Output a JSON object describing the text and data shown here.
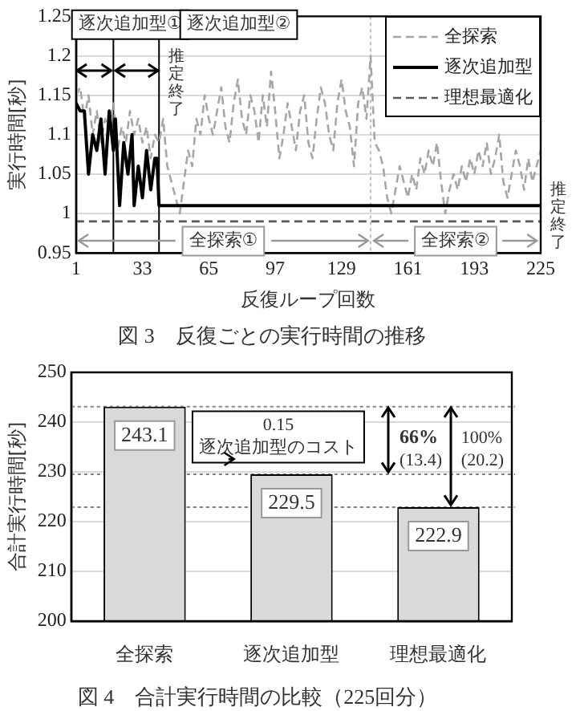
{
  "chart_data": [
    {
      "type": "line",
      "title": "図 3　反復ごとの実行時間の推移",
      "xlabel": "反復ループ回数",
      "ylabel": "実行時間[秒]",
      "xlim": [
        1,
        225
      ],
      "xticks": [
        1,
        33,
        65,
        97,
        129,
        161,
        193,
        225
      ],
      "ylim": [
        0.95,
        1.25
      ],
      "yticks": [
        0.95,
        1,
        1.05,
        1.1,
        1.15,
        1.2,
        1.25
      ],
      "grid": "y",
      "legend": "top right",
      "marker": "none",
      "series": [
        {
          "name": "全探索",
          "color": "#a6a6a6",
          "line_style": "dashed",
          "x": [
            1,
            3,
            5,
            7,
            9,
            11,
            13,
            15,
            17,
            19,
            21,
            23,
            25,
            27,
            29,
            31,
            33,
            35,
            37,
            39,
            41,
            43,
            45,
            47,
            49,
            51,
            53,
            55,
            57,
            59,
            61,
            63,
            65,
            67,
            69,
            71,
            73,
            75,
            77,
            79,
            81,
            83,
            85,
            87,
            89,
            91,
            93,
            95,
            97,
            99,
            101,
            103,
            105,
            107,
            109,
            111,
            113,
            115,
            117,
            119,
            121,
            123,
            125,
            127,
            129,
            131,
            133,
            135,
            137,
            139,
            141,
            143,
            145,
            147,
            149,
            151,
            153,
            155,
            157,
            159,
            161,
            163,
            165,
            167,
            169,
            171,
            173,
            175,
            177,
            179,
            181,
            183,
            185,
            187,
            189,
            191,
            193,
            195,
            197,
            199,
            201,
            203,
            205,
            207,
            209,
            211,
            213,
            215,
            217,
            219,
            221,
            223,
            225
          ],
          "values": [
            1.15,
            1.16,
            1.12,
            1.15,
            1.1,
            1.13,
            1.09,
            1.12,
            1.1,
            1.14,
            1.08,
            1.11,
            1.09,
            1.13,
            1.1,
            1.12,
            1.09,
            1.11,
            1.07,
            1.1,
            1.09,
            1.12,
            1.06,
            1.04,
            1.02,
            1.0,
            1.04,
            1.08,
            1.06,
            1.12,
            1.1,
            1.15,
            1.12,
            1.1,
            1.13,
            1.16,
            1.11,
            1.09,
            1.14,
            1.17,
            1.12,
            1.1,
            1.15,
            1.13,
            1.09,
            1.15,
            1.11,
            1.18,
            1.13,
            1.07,
            1.1,
            1.14,
            1.11,
            1.08,
            1.13,
            1.15,
            1.09,
            1.07,
            1.12,
            1.16,
            1.14,
            1.1,
            1.08,
            1.14,
            1.17,
            1.13,
            1.11,
            1.06,
            1.14,
            1.16,
            1.12,
            1.2,
            1.09,
            1.08,
            1.06,
            1.02,
            1.0,
            1.03,
            1.06,
            1.04,
            1.02,
            1.05,
            1.03,
            1.07,
            1.05,
            1.08,
            1.06,
            1.09,
            1.04,
            1.0,
            1.03,
            1.05,
            1.03,
            1.06,
            1.04,
            1.07,
            1.05,
            1.08,
            1.06,
            1.09,
            1.05,
            1.07,
            1.1,
            1.04,
            1.02,
            1.05,
            1.08,
            1.06,
            1.03,
            1.07,
            1.04,
            1.06,
            1.08
          ]
        },
        {
          "name": "逐次追加型",
          "color": "#000000",
          "line_style": "solid",
          "x": [
            1,
            3,
            5,
            7,
            9,
            11,
            13,
            15,
            17,
            19,
            20,
            22,
            24,
            26,
            28,
            29,
            31,
            33,
            35,
            37,
            39,
            40,
            41,
            225
          ],
          "values": [
            1.14,
            1.13,
            1.13,
            1.05,
            1.1,
            1.08,
            1.12,
            1.05,
            1.13,
            1.08,
            1.12,
            1.01,
            1.09,
            1.05,
            1.1,
            1.01,
            1.06,
            1.02,
            1.08,
            1.03,
            1.07,
            1.07,
            1.01,
            1.01
          ]
        },
        {
          "name": "理想最適化",
          "color": "#595959",
          "line_style": "dashed",
          "x": [
            1,
            225
          ],
          "values": [
            0.99,
            0.99
          ]
        }
      ],
      "ref_lines": [
        {
          "axis": "x",
          "value": 19,
          "color": "#000000",
          "line_style": "solid"
        },
        {
          "axis": "x",
          "value": 41,
          "color": "#000000",
          "line_style": "solid",
          "label": "推定終了"
        },
        {
          "axis": "x",
          "value": 143,
          "color": "#bfbfbf",
          "line_style": "dotted"
        }
      ],
      "annotations": [
        "逐次追加型①",
        "逐次追加型②",
        {
          "text": "全探索①",
          "x": 143,
          "y": 0.965
        },
        "全探索②",
        "推定終了"
      ]
    },
    {
      "type": "bar",
      "title": "図 4　合計実行時間の比較（225回分）",
      "ylabel": "合計実行時間[秒]",
      "categories": [
        "全探索",
        "逐次追加型",
        "理想最適化"
      ],
      "values": [
        243.1,
        229.5,
        222.9
      ],
      "color": "#d9d9d9",
      "data_labels": true,
      "ylim": [
        200,
        250
      ],
      "yticks": [
        200,
        210,
        220,
        230,
        240,
        250
      ],
      "grid": "y",
      "ref_lines": [
        {
          "axis": "y",
          "value": 243.1,
          "color": "#808080",
          "line_style": "dotted"
        },
        {
          "axis": "y",
          "value": 229.5,
          "color": "#808080",
          "line_style": "dotted"
        },
        {
          "axis": "y",
          "value": 222.9,
          "color": "#808080",
          "line_style": "dotted"
        }
      ],
      "annotations": [
        {
          "text": "0.15\n逐次追加型のコスト",
          "x": "逐次追加型",
          "y": 229.5
        },
        {
          "text": "66%\n(13.4)",
          "y": 229.5
        },
        {
          "text": "100%\n(20.2)",
          "y": 222.9
        }
      ]
    }
  ]
}
